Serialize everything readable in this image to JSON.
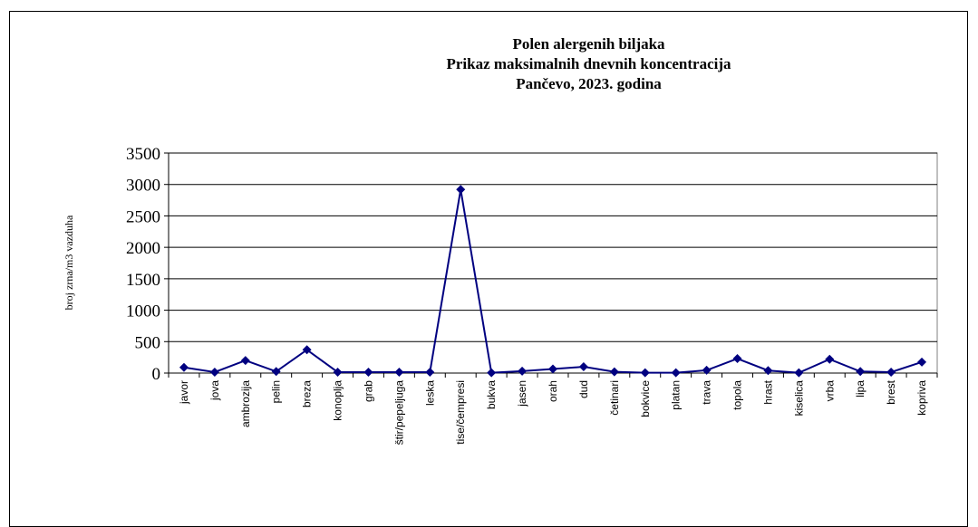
{
  "chart_data": {
    "type": "line",
    "title": [
      "Polen alergenih biljaka",
      "Prikaz maksimalnih dnevnih koncentracija",
      "Pančevo, 2023. godina"
    ],
    "xlabel": "",
    "ylabel": "broj zrna/m3 vazduha",
    "ylim": [
      0,
      3500
    ],
    "yticks": [
      0,
      500,
      1000,
      1500,
      2000,
      2500,
      3000,
      3500
    ],
    "grid": true,
    "series_color": "#000080",
    "categories": [
      "javor",
      "jova",
      "ambrozija",
      "pelin",
      "breza",
      "konoplja",
      "grab",
      "štir/pepeljuga",
      "leska",
      "tise/čempresi",
      "bukva",
      "jasen",
      "orah",
      "dud",
      "četinari",
      "bokvice",
      "platan",
      "trava",
      "topola",
      "hrast",
      "kiselica",
      "vrba",
      "lipa",
      "brest",
      "kopriva"
    ],
    "values": [
      90,
      15,
      200,
      25,
      370,
      15,
      15,
      15,
      15,
      2920,
      5,
      30,
      65,
      100,
      20,
      5,
      5,
      45,
      230,
      40,
      5,
      220,
      25,
      15,
      175
    ]
  }
}
